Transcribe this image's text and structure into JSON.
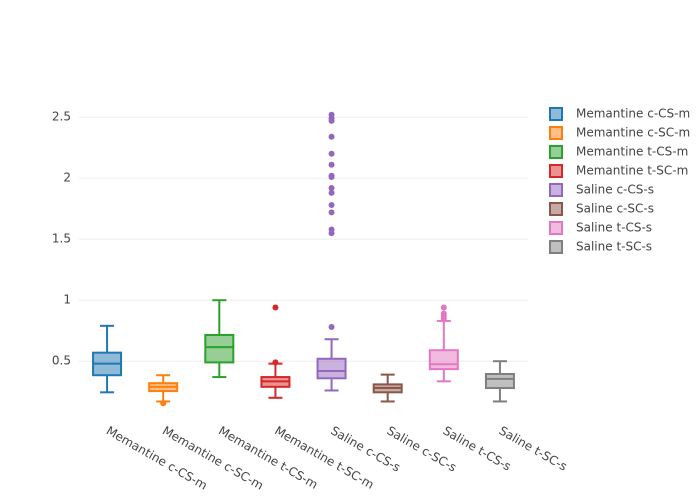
{
  "chart_data": {
    "type": "box",
    "ylim": [
      0.1,
      2.6
    ],
    "yticks": [
      0.5,
      1,
      1.5,
      2,
      2.5
    ],
    "grid": true,
    "legend": "right",
    "series": [
      {
        "name": "Memantine c-CS-m",
        "color": "#1f77b4",
        "min": 0.245,
        "q1": 0.385,
        "median": 0.48,
        "q3": 0.57,
        "max": 0.79,
        "outliers": []
      },
      {
        "name": "Memantine c-SC-m",
        "color": "#ff7f0e",
        "min": 0.17,
        "q1": 0.255,
        "median": 0.29,
        "q3": 0.32,
        "max": 0.385,
        "outliers": [
          0.155
        ]
      },
      {
        "name": "Memantine t-CS-m",
        "color": "#2ca02c",
        "min": 0.37,
        "q1": 0.49,
        "median": 0.615,
        "q3": 0.715,
        "max": 1.0,
        "outliers": []
      },
      {
        "name": "Memantine t-SC-m",
        "color": "#d62728",
        "min": 0.2,
        "q1": 0.29,
        "median": 0.335,
        "q3": 0.37,
        "max": 0.48,
        "outliers": [
          0.94,
          0.49
        ]
      },
      {
        "name": "Saline c-CS-s",
        "color": "#9467bd",
        "min": 0.26,
        "q1": 0.36,
        "median": 0.42,
        "q3": 0.52,
        "max": 0.68,
        "outliers": [
          2.52,
          2.49,
          2.47,
          2.34,
          2.2,
          2.11,
          2.02,
          2.01,
          1.92,
          1.88,
          1.78,
          1.72,
          1.58,
          1.55,
          0.78
        ]
      },
      {
        "name": "Saline c-SC-s",
        "color": "#8c564b",
        "min": 0.17,
        "q1": 0.245,
        "median": 0.28,
        "q3": 0.31,
        "max": 0.39,
        "outliers": []
      },
      {
        "name": "Saline t-CS-s",
        "color": "#e377c2",
        "min": 0.335,
        "q1": 0.435,
        "median": 0.475,
        "q3": 0.59,
        "max": 0.83,
        "outliers": [
          0.94,
          0.89,
          0.87,
          0.85
        ]
      },
      {
        "name": "Saline t-SC-s",
        "color": "#7f7f7f",
        "min": 0.17,
        "q1": 0.28,
        "median": 0.355,
        "q3": 0.395,
        "max": 0.5,
        "outliers": []
      }
    ]
  }
}
